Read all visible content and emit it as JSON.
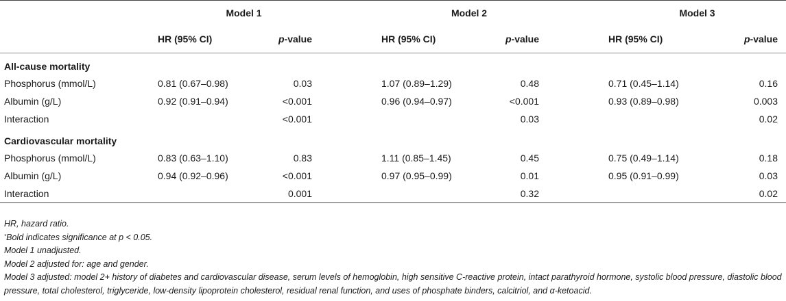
{
  "table": {
    "models": [
      "Model 1",
      "Model 2",
      "Model 3"
    ],
    "col_hr": "HR (95% CI)",
    "col_p_italic": "p",
    "col_p_rest": "-value",
    "sections": [
      {
        "title": "All-cause mortality",
        "rows": [
          {
            "label": "Phosphorus (mmol/L)",
            "cells": [
              {
                "hr": "0.81 (0.67–0.98)",
                "p": "0.03",
                "bold": true
              },
              {
                "hr": "1.07 (0.89–1.29)",
                "p": "0.48",
                "bold": false
              },
              {
                "hr": "0.71 (0.45–1.14)",
                "p": "0.16",
                "bold": false
              }
            ]
          },
          {
            "label": "Albumin (g/L)",
            "cells": [
              {
                "hr": "0.92 (0.91–0.94)",
                "p": "<0.001",
                "bold": true
              },
              {
                "hr": "0.96 (0.94–0.97)",
                "p": "<0.001",
                "bold": true
              },
              {
                "hr": "0.93 (0.89–0.98)",
                "p": "0.003",
                "bold": true
              }
            ]
          },
          {
            "label": "Interaction",
            "cells": [
              {
                "hr": "",
                "p": "<0.001",
                "bold": true
              },
              {
                "hr": "",
                "p": "0.03",
                "bold": true
              },
              {
                "hr": "",
                "p": "0.02",
                "bold": true
              }
            ]
          }
        ]
      },
      {
        "title": "Cardiovascular mortality",
        "rows": [
          {
            "label": "Phosphorus (mmol/L)",
            "cells": [
              {
                "hr": "0.83 (0.63–1.10)",
                "p": "0.83",
                "bold": false
              },
              {
                "hr": "1.11 (0.85–1.45)",
                "p": "0.45",
                "bold": false
              },
              {
                "hr": "0.75 (0.49–1.14)",
                "p": "0.18",
                "bold": false
              }
            ]
          },
          {
            "label": "Albumin (g/L)",
            "cells": [
              {
                "hr": "0.94 (0.92–0.96)",
                "p": "<0.001",
                "bold": true
              },
              {
                "hr": "0.97 (0.95–0.99)",
                "p": "0.01",
                "bold": true
              },
              {
                "hr": "0.95 (0.91–0.99)",
                "p": "0.03",
                "bold": true
              }
            ]
          },
          {
            "label": "Interaction",
            "cells": [
              {
                "hr": "",
                "p": "0.001",
                "bold": true
              },
              {
                "hr": "",
                "p": "0.32",
                "bold": false
              },
              {
                "hr": "",
                "p": "0.02",
                "bold": true
              }
            ]
          }
        ]
      }
    ]
  },
  "notes": {
    "abbrev": "HR, hazard ratio.",
    "sig_mark": "*",
    "sig_text": "Bold indicates significance at p < 0.05.",
    "model1": "Model 1 unadjusted.",
    "model2": "Model 2 adjusted for: age and gender.",
    "model3": "Model 3 adjusted: model 2+ history of diabetes and cardiovascular disease, serum levels of hemoglobin, high sensitive C-reactive protein, intact parathyroid hormone, systolic blood pressure, diastolic blood pressure, total cholesterol, triglyceride, low-density lipoprotein cholesterol, residual renal function, and uses of phosphate binders, calcitriol, and α-ketoacid."
  }
}
